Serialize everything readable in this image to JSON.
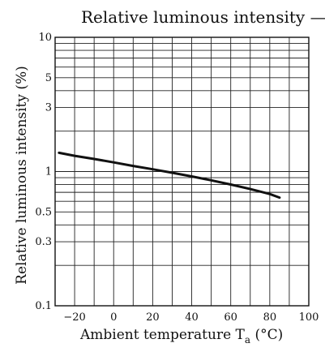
{
  "chart_data": {
    "type": "line",
    "title": "Relative luminous intensity — T",
    "title_subscript": "a",
    "xlabel": "Ambient temperature  T",
    "xlabel_subscript": "a",
    "xlabel_suffix": " (°C)",
    "ylabel": "Relative luminous intensity  (%)",
    "xlim": [
      -30,
      100
    ],
    "ylim": [
      0.1,
      10
    ],
    "yscale": "log",
    "grid": true,
    "x_ticks": [
      -20,
      0,
      20,
      40,
      60,
      80,
      100
    ],
    "x_tick_labels": [
      "−20",
      "0",
      "20",
      "40",
      "60",
      "80",
      "100"
    ],
    "y_ticks": [
      0.1,
      0.3,
      0.5,
      1,
      3,
      5,
      10
    ],
    "y_tick_labels": [
      "0.1",
      "0.3",
      "0.5",
      "1",
      "3",
      "5",
      "10"
    ],
    "series": [
      {
        "x": [
          -28,
          -20,
          -10,
          0,
          10,
          20,
          30,
          40,
          50,
          60,
          70,
          80,
          85
        ],
        "y": [
          1.38,
          1.31,
          1.24,
          1.17,
          1.1,
          1.04,
          0.98,
          0.92,
          0.86,
          0.8,
          0.74,
          0.68,
          0.64
        ]
      }
    ]
  }
}
